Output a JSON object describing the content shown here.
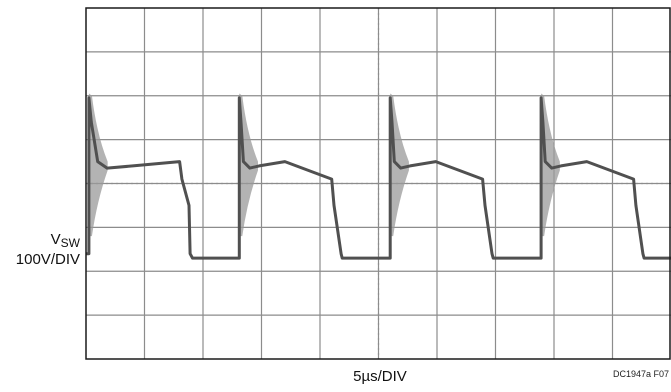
{
  "chart_data": {
    "type": "line",
    "title": "",
    "trace_name": "V",
    "trace_subscript": "SW",
    "ylabel_scale": "100V/DIV",
    "xlabel": "5µs/DIV",
    "figure_id": "DC1947a F07",
    "grid": true,
    "divisions": {
      "x": 10,
      "y": 8
    },
    "ylim": [
      -4,
      4
    ],
    "xlim": [
      0,
      50
    ],
    "units": {
      "x": "µs",
      "y": "V"
    },
    "series": [
      {
        "x": [
          0,
          0.25,
          0.25,
          0.45,
          1.0,
          1.8,
          4.0,
          8.0,
          8.2,
          8.8,
          8.9,
          9.1,
          13.1,
          13.1,
          13.25,
          13.45,
          14.0,
          14.8,
          17.0,
          21.0,
          21.2,
          21.8,
          21.9,
          22.1,
          26.0,
          26.0,
          26.15,
          26.35,
          26.9,
          27.7,
          29.9,
          33.9,
          34.1,
          34.7,
          34.8,
          35.0,
          38.9,
          38.9,
          39.05,
          39.25,
          39.8,
          40.6,
          42.8,
          46.8,
          47.0,
          47.6,
          47.7,
          47.9,
          50
        ],
        "values": [
          -1.6,
          -1.6,
          1.95,
          1.4,
          0.5,
          0.35,
          0.4,
          0.5,
          0.1,
          -0.5,
          -1.6,
          -1.7,
          -1.7,
          1.95,
          1.4,
          0.5,
          0.35,
          0.4,
          0.5,
          0.1,
          -0.5,
          -1.6,
          -1.7,
          -1.7,
          -1.7,
          1.95,
          1.4,
          0.5,
          0.35,
          0.4,
          0.5,
          0.1,
          -0.5,
          -1.6,
          -1.7,
          -1.7,
          -1.7,
          1.95,
          1.4,
          0.5,
          0.35,
          0.4,
          0.5,
          0.1,
          -0.5,
          -1.6,
          -1.7,
          -1.7,
          -1.7
        ]
      }
    ],
    "ringing_events": [
      0.25,
      13.1,
      26.0,
      38.9
    ]
  },
  "colors": {
    "background": "#ffffff",
    "grid": "#8c8c8c",
    "frame": "#1a1a1a",
    "trace": "#505050"
  }
}
